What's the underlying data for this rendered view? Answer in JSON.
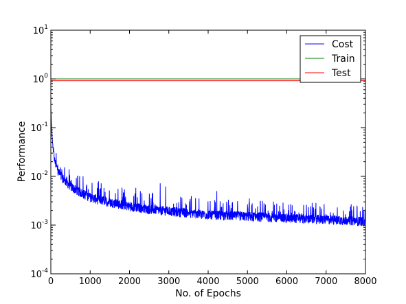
{
  "chart_data": {
    "type": "line",
    "title": "",
    "xlabel": "No. of Epochs",
    "ylabel": "Performance",
    "xlim": [
      0,
      8000
    ],
    "ylim": [
      0.0001,
      10
    ],
    "yscale": "log",
    "grid": false,
    "legend_position": "top-right",
    "x_ticks": [
      0,
      1000,
      2000,
      3000,
      4000,
      5000,
      6000,
      7000,
      8000
    ],
    "x_tick_labels": [
      "0",
      "1000",
      "2000",
      "3000",
      "4000",
      "5000",
      "6000",
      "7000",
      "8000"
    ],
    "y_ticks": [
      {
        "value": 0.0001,
        "base": "10",
        "exp": "-4"
      },
      {
        "value": 0.001,
        "base": "10",
        "exp": "-3"
      },
      {
        "value": 0.01,
        "base": "10",
        "exp": "-2"
      },
      {
        "value": 0.1,
        "base": "10",
        "exp": "-1"
      },
      {
        "value": 1,
        "base": "10",
        "exp": "0"
      },
      {
        "value": 10,
        "base": "10",
        "exp": "1"
      }
    ],
    "series": [
      {
        "name": "Cost",
        "color": "#0000ff",
        "noisy": true,
        "x": [
          0,
          10,
          30,
          60,
          100,
          150,
          200,
          300,
          400,
          500,
          600,
          800,
          1000,
          1200,
          1500,
          2000,
          2500,
          3000,
          3500,
          4000,
          4500,
          5000,
          5500,
          6000,
          6500,
          7000,
          7500,
          8000
        ],
        "y": [
          0.3,
          0.15,
          0.07,
          0.035,
          0.02,
          0.015,
          0.012,
          0.009,
          0.0075,
          0.0062,
          0.0054,
          0.0044,
          0.0037,
          0.0033,
          0.0029,
          0.0024,
          0.0021,
          0.0019,
          0.00175,
          0.0016,
          0.00155,
          0.0015,
          0.00143,
          0.00138,
          0.00133,
          0.00128,
          0.00123,
          0.00118
        ],
        "spikes": [
          {
            "x": 280,
            "y": 0.014
          },
          {
            "x": 520,
            "y": 0.0085
          },
          {
            "x": 820,
            "y": 0.01
          },
          {
            "x": 1280,
            "y": 0.0072
          },
          {
            "x": 1470,
            "y": 0.0052
          },
          {
            "x": 1850,
            "y": 0.0045
          },
          {
            "x": 2160,
            "y": 0.0058
          },
          {
            "x": 2780,
            "y": 0.0072
          },
          {
            "x": 2920,
            "y": 0.0062
          },
          {
            "x": 3300,
            "y": 0.0038
          },
          {
            "x": 4220,
            "y": 0.005
          },
          {
            "x": 4380,
            "y": 0.0028
          },
          {
            "x": 5420,
            "y": 0.0028
          },
          {
            "x": 6100,
            "y": 0.0027
          },
          {
            "x": 6500,
            "y": 0.0026
          },
          {
            "x": 6850,
            "y": 0.0029
          },
          {
            "x": 7530,
            "y": 0.0108
          },
          {
            "x": 7620,
            "y": 0.0024
          }
        ]
      },
      {
        "name": "Train",
        "color": "#008000",
        "x": [
          0,
          8000
        ],
        "y": [
          1.0,
          1.0
        ]
      },
      {
        "name": "Test",
        "color": "#ff0000",
        "x": [
          0,
          8000
        ],
        "y": [
          0.92,
          0.92
        ]
      }
    ]
  }
}
